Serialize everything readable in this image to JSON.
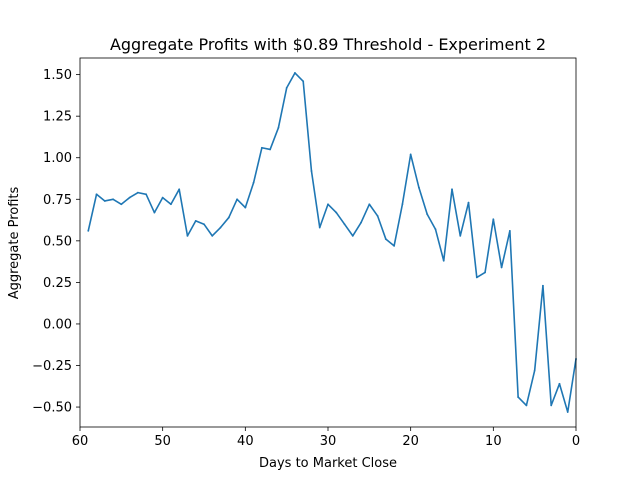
{
  "chart_data": {
    "type": "line",
    "title": "Aggregate Profits with $0.89 Threshold - Experiment 2",
    "xlabel": "Days to Market Close",
    "ylabel": "Aggregate Profits",
    "xlim": [
      60,
      0
    ],
    "ylim": [
      -0.62,
      1.6
    ],
    "x_ticks": [
      60,
      50,
      40,
      30,
      20,
      10,
      0
    ],
    "x_tick_labels": [
      "60",
      "50",
      "40",
      "30",
      "20",
      "10",
      "0"
    ],
    "y_ticks": [
      -0.5,
      -0.25,
      0.0,
      0.25,
      0.5,
      0.75,
      1.0,
      1.25,
      1.5
    ],
    "y_tick_labels": [
      "−0.50",
      "−0.25",
      "0.00",
      "0.25",
      "0.50",
      "0.75",
      "1.00",
      "1.25",
      "1.50"
    ],
    "grid": false,
    "legend": "none",
    "series": [
      {
        "color": "#1f77b4",
        "x": [
          59,
          58,
          57,
          56,
          55,
          54,
          53,
          52,
          51,
          50,
          49,
          48,
          47,
          46,
          45,
          44,
          43,
          42,
          41,
          40,
          39,
          38,
          37,
          36,
          35,
          34,
          33,
          32,
          31,
          30,
          29,
          28,
          27,
          26,
          25,
          24,
          23,
          22,
          21,
          20,
          19,
          18,
          17,
          16,
          15,
          14,
          13,
          12,
          11,
          10,
          9,
          8,
          7,
          6,
          5,
          4,
          3,
          2,
          1,
          0
        ],
        "y": [
          0.56,
          0.78,
          0.74,
          0.75,
          0.72,
          0.76,
          0.79,
          0.78,
          0.67,
          0.76,
          0.72,
          0.81,
          0.53,
          0.62,
          0.6,
          0.53,
          0.58,
          0.64,
          0.75,
          0.7,
          0.85,
          1.06,
          1.05,
          1.18,
          1.42,
          1.51,
          1.46,
          0.92,
          0.58,
          0.72,
          0.67,
          0.6,
          0.53,
          0.61,
          0.72,
          0.65,
          0.51,
          0.47,
          0.72,
          1.02,
          0.82,
          0.66,
          0.57,
          0.38,
          0.81,
          0.53,
          0.73,
          0.28,
          0.31,
          0.63,
          0.34,
          0.56,
          -0.44,
          -0.49,
          -0.28,
          0.23,
          -0.49,
          -0.36,
          -0.53,
          -0.21
        ]
      }
    ]
  }
}
